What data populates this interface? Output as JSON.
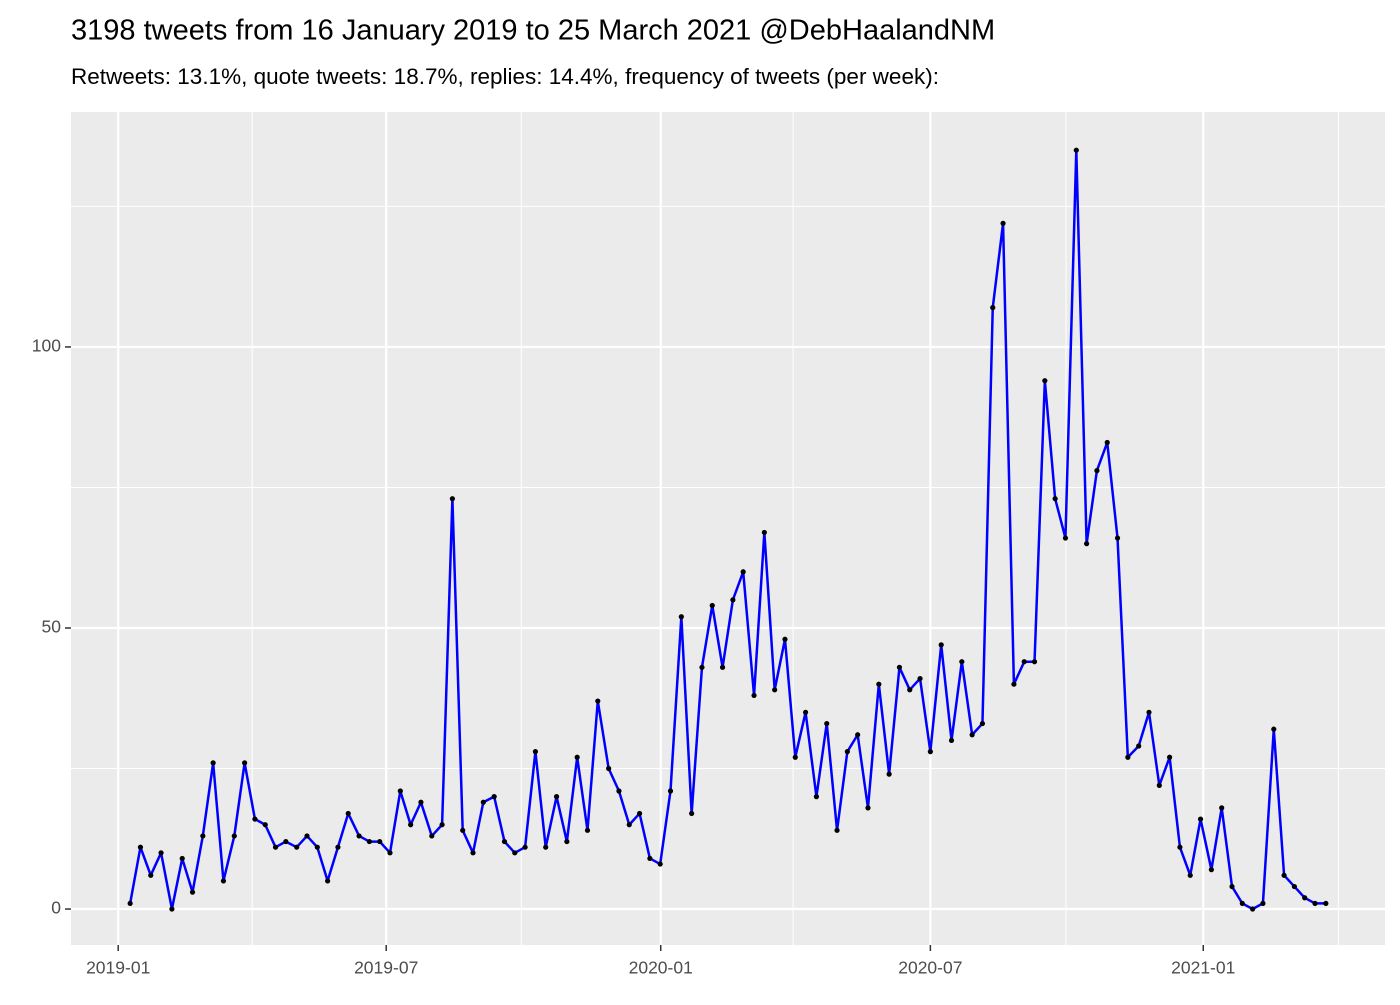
{
  "chart_data": {
    "type": "line",
    "title": "3198 tweets from 16 January 2019 to 25 March 2021 @DebHaalandNM",
    "subtitle": "Retweets: 13.1%, quote tweets: 18.7%, replies: 14.4%, frequency of tweets (per week):",
    "x": [
      2019.022,
      2019.041,
      2019.06,
      2019.079,
      2019.099,
      2019.118,
      2019.137,
      2019.156,
      2019.175,
      2019.194,
      2019.214,
      2019.233,
      2019.252,
      2019.271,
      2019.29,
      2019.309,
      2019.329,
      2019.348,
      2019.367,
      2019.386,
      2019.405,
      2019.424,
      2019.444,
      2019.463,
      2019.482,
      2019.501,
      2019.52,
      2019.539,
      2019.558,
      2019.578,
      2019.597,
      2019.616,
      2019.635,
      2019.654,
      2019.673,
      2019.693,
      2019.712,
      2019.731,
      2019.75,
      2019.769,
      2019.788,
      2019.808,
      2019.827,
      2019.846,
      2019.865,
      2019.884,
      2019.904,
      2019.923,
      2019.942,
      2019.961,
      2019.98,
      2019.999,
      2020.018,
      2020.038,
      2020.057,
      2020.076,
      2020.095,
      2020.114,
      2020.133,
      2020.152,
      2020.172,
      2020.191,
      2020.21,
      2020.229,
      2020.248,
      2020.267,
      2020.287,
      2020.306,
      2020.325,
      2020.344,
      2020.363,
      2020.382,
      2020.402,
      2020.421,
      2020.44,
      2020.459,
      2020.478,
      2020.497,
      2020.517,
      2020.536,
      2020.555,
      2020.574,
      2020.593,
      2020.612,
      2020.631,
      2020.651,
      2020.67,
      2020.689,
      2020.708,
      2020.727,
      2020.746,
      2020.766,
      2020.785,
      2020.804,
      2020.823,
      2020.842,
      2020.861,
      2020.881,
      2020.9,
      2020.919,
      2020.938,
      2020.957,
      2020.976,
      2020.995,
      2021.015,
      2021.034,
      2021.053,
      2021.072,
      2021.091,
      2021.11,
      2021.13,
      2021.149,
      2021.168,
      2021.187,
      2021.206,
      2021.226
    ],
    "values": [
      1,
      11,
      6,
      10,
      0,
      9,
      3,
      13,
      26,
      5,
      13,
      26,
      16,
      15,
      11,
      12,
      11,
      13,
      11,
      5,
      11,
      17,
      13,
      12,
      12,
      10,
      21,
      15,
      19,
      13,
      15,
      73,
      14,
      10,
      19,
      20,
      12,
      10,
      11,
      28,
      11,
      20,
      12,
      27,
      14,
      37,
      25,
      21,
      15,
      17,
      9,
      8,
      21,
      52,
      17,
      43,
      54,
      43,
      55,
      60,
      38,
      67,
      39,
      48,
      27,
      35,
      20,
      33,
      14,
      28,
      31,
      18,
      40,
      24,
      43,
      39,
      41,
      28,
      47,
      30,
      44,
      31,
      33,
      107,
      122,
      40,
      44,
      44,
      94,
      73,
      66,
      135,
      65,
      78,
      83,
      66,
      27,
      29,
      35,
      22,
      27,
      11,
      6,
      16,
      7,
      18,
      4,
      1,
      0,
      1,
      32,
      6,
      4,
      2,
      1,
      1
    ],
    "color": "#0000ff",
    "marker_color": "#000000",
    "xlim": [
      2018.913,
      2021.335
    ],
    "xticks": [
      {
        "value": 2019.0,
        "label": "2019-01"
      },
      {
        "value": 2019.494,
        "label": "2019-07"
      },
      {
        "value": 2020.0,
        "label": "2020-01"
      },
      {
        "value": 2020.497,
        "label": "2020-07"
      },
      {
        "value": 2021.0,
        "label": "2021-01"
      }
    ],
    "minor_xticks": [
      2019.247,
      2019.743,
      2020.244,
      2020.747,
      2021.249
    ],
    "ylim": [
      -6.4,
      141.8
    ],
    "yticks": [
      0,
      50,
      100
    ],
    "minor_yticks": [
      25,
      75,
      125
    ],
    "grid": true
  }
}
